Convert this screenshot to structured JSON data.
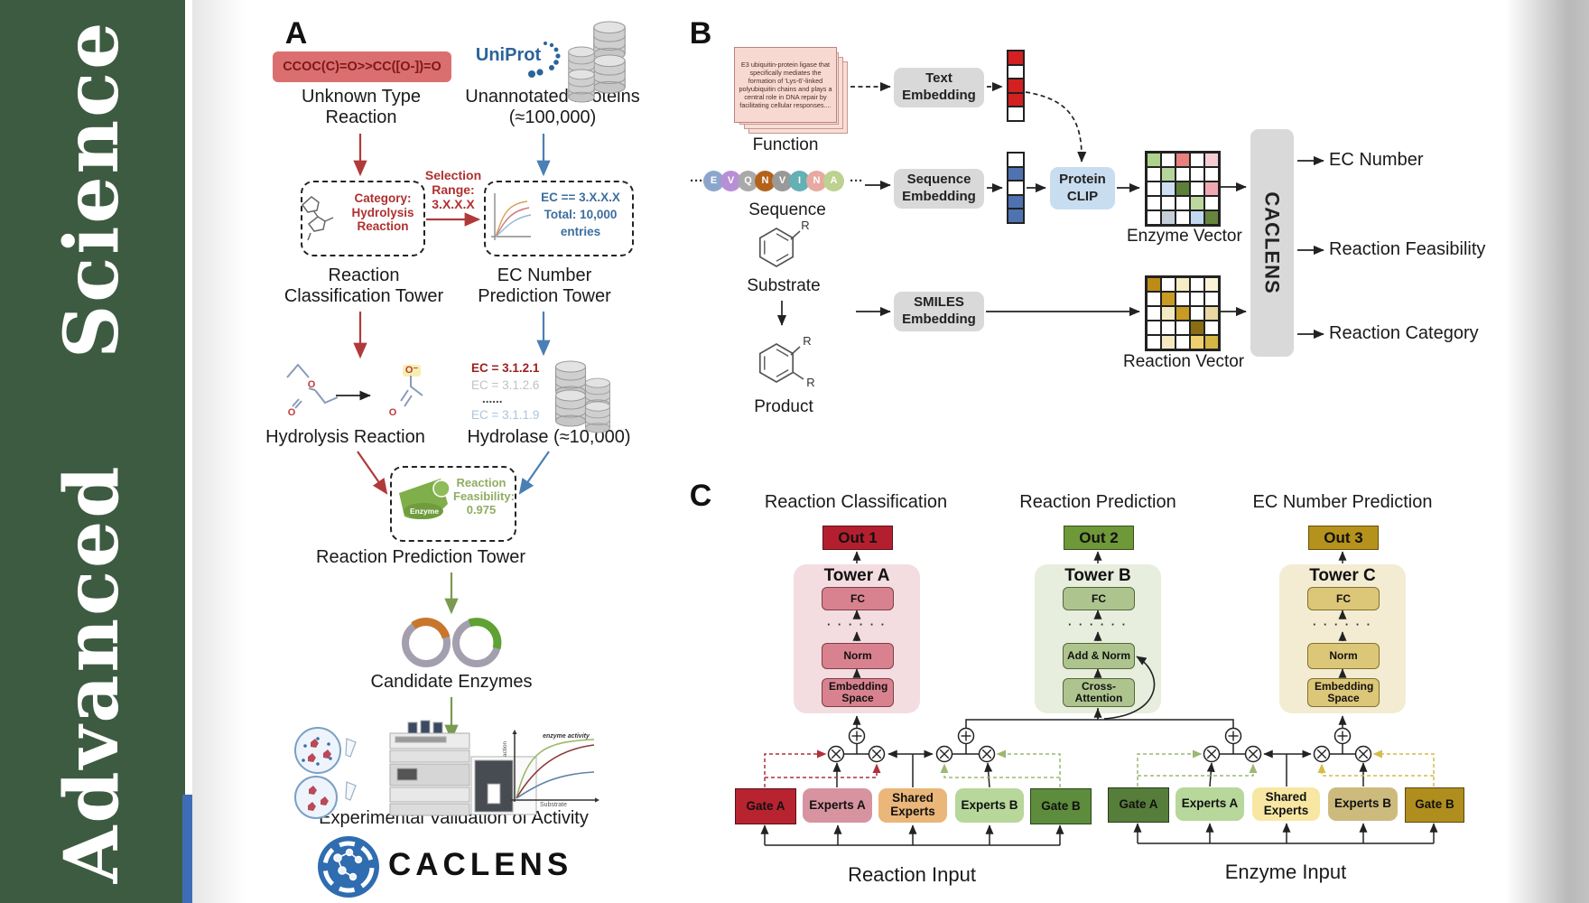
{
  "journal": {
    "name": "Advanced Science",
    "accent_green": "#3d5b41",
    "spine_blue": "#3f6db5"
  },
  "logo": {
    "caclens": "CACLENS"
  },
  "panelA": {
    "label": "A",
    "smiles": "CCOC(C)=O>>CC([O-])=O",
    "unknown_type_reaction": "Unknown Type Reaction",
    "uniprot": "UniProt",
    "unannotated_proteins": "Unannotated Proteins (≈100,000)",
    "selection_range": "Selection Range: 3.X.X.X",
    "category_box": "Category: Hydrolysis Reaction",
    "ec_box": [
      "EC == 3.X.X.X",
      "Total: 10,000",
      "entries"
    ],
    "reaction_classification_tower": "Reaction Classification Tower",
    "ec_number_prediction_tower": "EC Number Prediction Tower",
    "hydrolysis_reaction": "Hydrolysis Reaction",
    "ec_list": [
      "EC = 3.1.2.1",
      "EC = 3.1.2.6",
      "......",
      "EC = 3.1.1.9"
    ],
    "hydrolase": "Hydrolase (≈10,000)",
    "enzyme_label": "Enzyme",
    "feasibility": "Reaction Feasibility: 0.975",
    "reaction_prediction_tower": "Reaction Prediction Tower",
    "candidate_enzymes": "Candidate Enzymes",
    "plot": {
      "title": "enzyme activity",
      "ylabel": "Rate of reaction",
      "xlabel": "Substrate"
    },
    "experimental_validation": "Experimental Validation of Activity",
    "atom_o": "O",
    "atom_o_minus": "O⁻",
    "colors": {
      "smiles_bg": "#db6f6f",
      "smiles_text": "#7e1818",
      "red_arrow": "#b03a3a",
      "blue_arrow": "#4a7fb5",
      "green_arrow": "#7a9a4f",
      "uniprot_blue": "#2b6399"
    }
  },
  "panelB": {
    "label": "B",
    "function_text": "E3 ubiquitin-protein ligase that specifically mediates the formation of 'Lys-6'-linked polyubiquitin chains and plays a central role in DNA repair by facilitating cellular responses....",
    "function_label": "Function",
    "sequence_label": "Sequence",
    "sequence_ellipsis": "···",
    "sequence": [
      {
        "letter": "E",
        "color": "#8ca6cb"
      },
      {
        "letter": "V",
        "color": "#b78fd6"
      },
      {
        "letter": "Q",
        "color": "#a9a9a9"
      },
      {
        "letter": "N",
        "color": "#b3621c"
      },
      {
        "letter": "V",
        "color": "#999999"
      },
      {
        "letter": "I",
        "color": "#63b0b5"
      },
      {
        "letter": "N",
        "color": "#e7a9a1"
      },
      {
        "letter": "A",
        "color": "#bdd190"
      }
    ],
    "substrate_label": "Substrate",
    "product_label": "Product",
    "r_group": "R",
    "text_embedding": "Text Embedding",
    "sequence_embedding": "Sequence Embedding",
    "smiles_embedding": "SMILES Embedding",
    "protein_clip": "Protein CLIP",
    "text_vector": [
      "#d42020",
      "#ffffff",
      "#d42020",
      "#d42020",
      "#ffffff"
    ],
    "seq_vector": [
      "#ffffff",
      "#4f72b0",
      "#ffffff",
      "#4f72b0",
      "#4f72b0"
    ],
    "enzyme_vector_label": "Enzyme Vector",
    "reaction_vector_label": "Reaction Vector",
    "enzyme_vector_cells": [
      "#aed28c",
      "#ffffff",
      "#e88080",
      "#ffffff",
      "#f6cdd2",
      "#ffffff",
      "#b4d69c",
      "#ffffff",
      "#ffffff",
      "#ffffff",
      "#ffffff",
      "#cfdff2",
      "#5d8038",
      "#ffffff",
      "#f0a9b2",
      "#ffffff",
      "#ffffff",
      "#ffffff",
      "#bcd89e",
      "#ffffff",
      "#ffffff",
      "#c6cfd9",
      "#ffffff",
      "#c2d8f0",
      "#66853d"
    ],
    "reaction_vector_cells": [
      "#bd8c16",
      "#ffffff",
      "#f6edc6",
      "#ffffff",
      "#faf3d8",
      "#ffffff",
      "#c99b22",
      "#ffffff",
      "#ffffff",
      "#ffffff",
      "#ffffff",
      "#f4eac2",
      "#c99b22",
      "#ffffff",
      "#ead7a4",
      "#ffffff",
      "#ffffff",
      "#ffffff",
      "#8a6d12",
      "#ffffff",
      "#ffffff",
      "#f4eac2",
      "#ffffff",
      "#eed06e",
      "#d6b642"
    ],
    "caclens": "CACLENS",
    "outputs": [
      "EC Number",
      "Reaction Feasibility",
      "Reaction Category"
    ],
    "colors": {
      "clip_bg": "#c9ddf0",
      "embed_bg": "#d9d9d9"
    }
  },
  "panelC": {
    "label": "C",
    "columns": [
      {
        "title": "Reaction Classification",
        "out": "Out 1",
        "tower": "Tower A",
        "fc": "FC",
        "dots": "· · · · · ·",
        "mid": "Norm",
        "bottom": "Embedding Space",
        "out_bg": "#b41f2f",
        "panel_bg": "#f3dde0",
        "box_bg": "#d9828f",
        "box_border": "#7c3e48"
      },
      {
        "title": "Reaction Prediction",
        "out": "Out 2",
        "tower": "Tower B",
        "fc": "FC",
        "dots": "· · · · · ·",
        "mid": "Add & Norm",
        "bottom": "Cross-Attention",
        "out_bg": "#6f9839",
        "panel_bg": "#e7eedd",
        "box_bg": "#aec48f",
        "box_border": "#55683a"
      },
      {
        "title": "EC Number Prediction",
        "out": "Out 3",
        "tower": "Tower C",
        "fc": "FC",
        "dots": "· · · · · ·",
        "mid": "Norm",
        "bottom": "Embedding Space",
        "out_bg": "#b5921b",
        "panel_bg": "#f3ecd3",
        "box_bg": "#dcc678",
        "box_border": "#81702c"
      }
    ],
    "reaction_group": {
      "gate_a": "Gate A",
      "experts_a": "Experts A",
      "shared": "Shared Experts",
      "experts_b": "Experts B",
      "gate_b": "Gate B",
      "input": "Reaction Input",
      "colors": {
        "gate_a": "#b82330",
        "experts_a": "#d794a0",
        "shared": "#eab679",
        "experts_b": "#b7d79b",
        "gate_b": "#5c8c3c"
      }
    },
    "enzyme_group": {
      "gate_a": "Gate A",
      "experts_a": "Experts A",
      "shared": "Shared Experts",
      "experts_b": "Experts B",
      "gate_b": "Gate B",
      "input": "Enzyme Input",
      "colors": {
        "gate_a": "#567d3a",
        "experts_a": "#b7d79b",
        "shared": "#f8e7a2",
        "experts_b": "#cdbb7d",
        "gate_b": "#b08e1e"
      }
    }
  }
}
